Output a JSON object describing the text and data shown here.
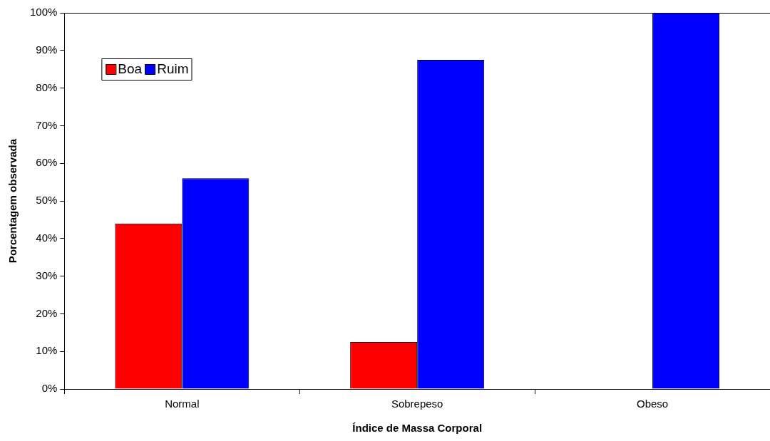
{
  "chart_data": {
    "type": "bar",
    "xlabel": "Índice de Massa Corporal",
    "ylabel": "Porcentagem observada",
    "categories": [
      "Normal",
      "Sobrepeso",
      "Obeso"
    ],
    "series": [
      {
        "name": "Boa",
        "color": "#ff0000",
        "values": [
          44,
          12.5,
          0
        ]
      },
      {
        "name": "Ruim",
        "color": "#0000ff",
        "values": [
          56,
          87.5,
          100
        ]
      }
    ],
    "ylim": [
      0,
      100
    ],
    "yticks": [
      {
        "value": 0,
        "label": "0%"
      },
      {
        "value": 10,
        "label": "10%"
      },
      {
        "value": 20,
        "label": "20%"
      },
      {
        "value": 30,
        "label": "30%"
      },
      {
        "value": 40,
        "label": "40%"
      },
      {
        "value": 50,
        "label": "50%"
      },
      {
        "value": 60,
        "label": "60%"
      },
      {
        "value": 70,
        "label": "70%"
      },
      {
        "value": 80,
        "label": "80%"
      },
      {
        "value": 90,
        "label": "90%"
      },
      {
        "value": 100,
        "label": "100%"
      }
    ],
    "grid": false,
    "legend": "top left"
  }
}
